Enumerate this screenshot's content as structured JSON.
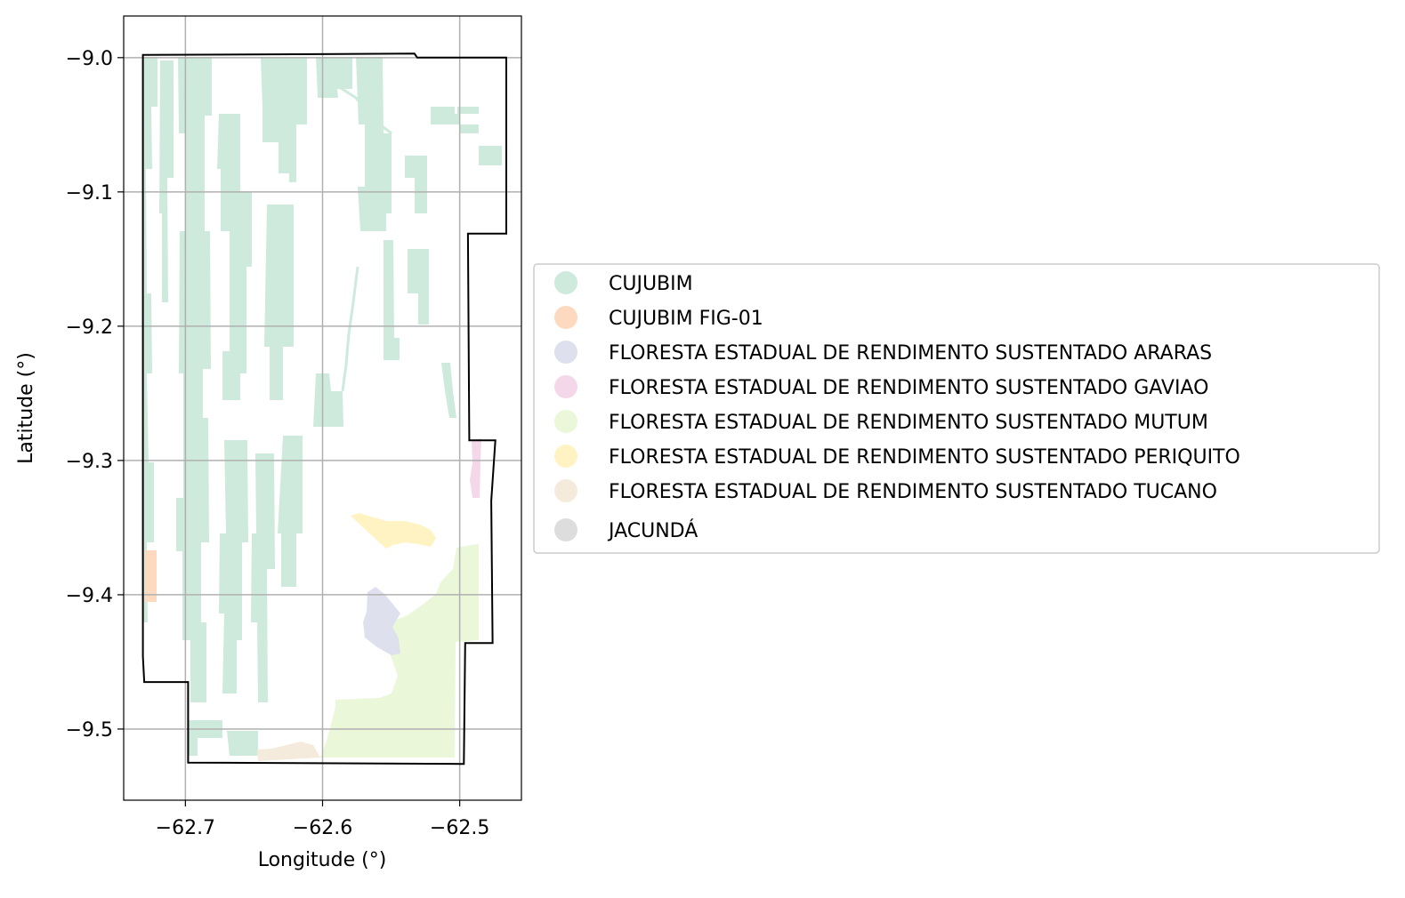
{
  "chart_data": {
    "type": "map",
    "title": "",
    "xlabel": "Longitude (°)",
    "ylabel": "Latitude (°)",
    "xlim": [
      -62.745,
      -62.455
    ],
    "ylim": [
      -9.553,
      -8.969
    ],
    "grid": true,
    "x_ticks": [
      {
        "value": -62.7,
        "label": "−62.7"
      },
      {
        "value": -62.6,
        "label": "−62.6"
      },
      {
        "value": -62.5,
        "label": "−62.5"
      }
    ],
    "y_ticks": [
      {
        "value": -9.0,
        "label": "−9.0"
      },
      {
        "value": -9.1,
        "label": "−9.1"
      },
      {
        "value": -9.2,
        "label": "−9.2"
      },
      {
        "value": -9.3,
        "label": "−9.3"
      },
      {
        "value": -9.4,
        "label": "−9.4"
      },
      {
        "value": -9.5,
        "label": "−9.5"
      }
    ],
    "legend_placement": "center-right outside",
    "legend": [
      {
        "label": "CUJUBIM",
        "color": "#cdeadd"
      },
      {
        "label": "CUJUBIM FIG-01",
        "color": "#fdd9c0"
      },
      {
        "label": "FLORESTA ESTADUAL DE RENDIMENTO SUSTENTADO ARARAS",
        "color": "#dfe0ee"
      },
      {
        "label": "FLORESTA ESTADUAL DE RENDIMENTO SUSTENTADO GAVIAO",
        "color": "#f5d7ea"
      },
      {
        "label": "FLORESTA ESTADUAL DE RENDIMENTO SUSTENTADO MUTUM",
        "color": "#eaf7d8"
      },
      {
        "label": "FLORESTA ESTADUAL DE RENDIMENTO SUSTENTADO PERIQUITO",
        "color": "#fff3c4"
      },
      {
        "label": "FLORESTA ESTADUAL DE RENDIMENTO SUSTENTADO TUCANO",
        "color": "#f5ebdc"
      },
      {
        "label": "JACUNDÁ",
        "color": "#dddddd"
      }
    ],
    "boundary": [
      [
        -62.731,
        -8.998
      ],
      [
        -62.533,
        -8.997
      ],
      [
        -62.531,
        -9.0
      ],
      [
        -62.466,
        -9.0
      ],
      [
        -62.466,
        -9.131
      ],
      [
        -62.494,
        -9.131
      ],
      [
        -62.493,
        -9.285
      ],
      [
        -62.474,
        -9.285
      ],
      [
        -62.477,
        -9.33
      ],
      [
        -62.476,
        -9.436
      ],
      [
        -62.496,
        -9.436
      ],
      [
        -62.497,
        -9.526
      ],
      [
        -62.698,
        -9.525
      ],
      [
        -62.698,
        -9.465
      ],
      [
        -62.73,
        -9.465
      ],
      [
        -62.731,
        -9.446
      ]
    ],
    "features": [
      {
        "name": "CUJUBIM",
        "regions": [
          {
            "lon": [
              -62.718,
              -62.701
            ],
            "lat": [
              -9.0,
              -9.35
            ]
          },
          {
            "lon": [
              -62.688,
              -62.672
            ],
            "lat": [
              -9.0,
              -9.47
            ]
          },
          {
            "lon": [
              -62.665,
              -62.645
            ],
            "lat": [
              -9.08,
              -9.38
            ]
          },
          {
            "lon": [
              -62.645,
              -62.62
            ],
            "lat": [
              -9.03,
              -9.15
            ]
          },
          {
            "lon": [
              -62.623,
              -62.608
            ],
            "lat": [
              -9.03,
              -9.29
            ]
          },
          {
            "lon": [
              -62.601,
              -62.58
            ],
            "lat": [
              -9.02,
              -9.075
            ]
          },
          {
            "lon": [
              -62.568,
              -62.555
            ],
            "lat": [
              -9.09,
              -9.2
            ]
          },
          {
            "lon": [
              -62.548,
              -62.534
            ],
            "lat": [
              -9.04,
              -9.18
            ]
          },
          {
            "lon": [
              -62.514,
              -62.498
            ],
            "lat": [
              -9.04,
              -9.095
            ]
          },
          {
            "lon": [
              -62.478,
              -62.467
            ],
            "lat": [
              -9.065,
              -9.08
            ]
          }
        ]
      },
      {
        "name": "CUJUBIM FIG-01",
        "regions": [
          {
            "lon": [
              -62.729,
              -62.721
            ],
            "lat": [
              -9.366,
              -9.405
            ]
          }
        ]
      },
      {
        "name": "FLORESTA ESTADUAL DE RENDIMENTO SUSTENTADO ARARAS",
        "regions": [
          {
            "lon": [
              -62.562,
              -62.548
            ],
            "lat": [
              -9.395,
              -9.445
            ]
          }
        ]
      },
      {
        "name": "FLORESTA ESTADUAL DE RENDIMENTO SUSTENTADO GAVIAO",
        "regions": [
          {
            "lon": [
              -62.481,
              -62.475
            ],
            "lat": [
              -9.29,
              -9.325
            ]
          }
        ]
      },
      {
        "name": "FLORESTA ESTADUAL DE RENDIMENTO SUSTENTADO MUTUM",
        "regions": [
          {
            "lon": [
              -62.589,
              -62.487
            ],
            "lat": [
              -9.365,
              -9.522
            ]
          }
        ]
      },
      {
        "name": "FLORESTA ESTADUAL DE RENDIMENTO SUSTENTADO PERIQUITO",
        "regions": [
          {
            "lon": [
              -62.573,
              -62.526
            ],
            "lat": [
              -9.34,
              -9.36
            ]
          }
        ]
      },
      {
        "name": "FLORESTA ESTADUAL DE RENDIMENTO SUSTENTADO TUCANO",
        "regions": [
          {
            "lon": [
              -62.645,
              -62.594
            ],
            "lat": [
              -9.508,
              -9.522
            ]
          }
        ]
      }
    ]
  }
}
